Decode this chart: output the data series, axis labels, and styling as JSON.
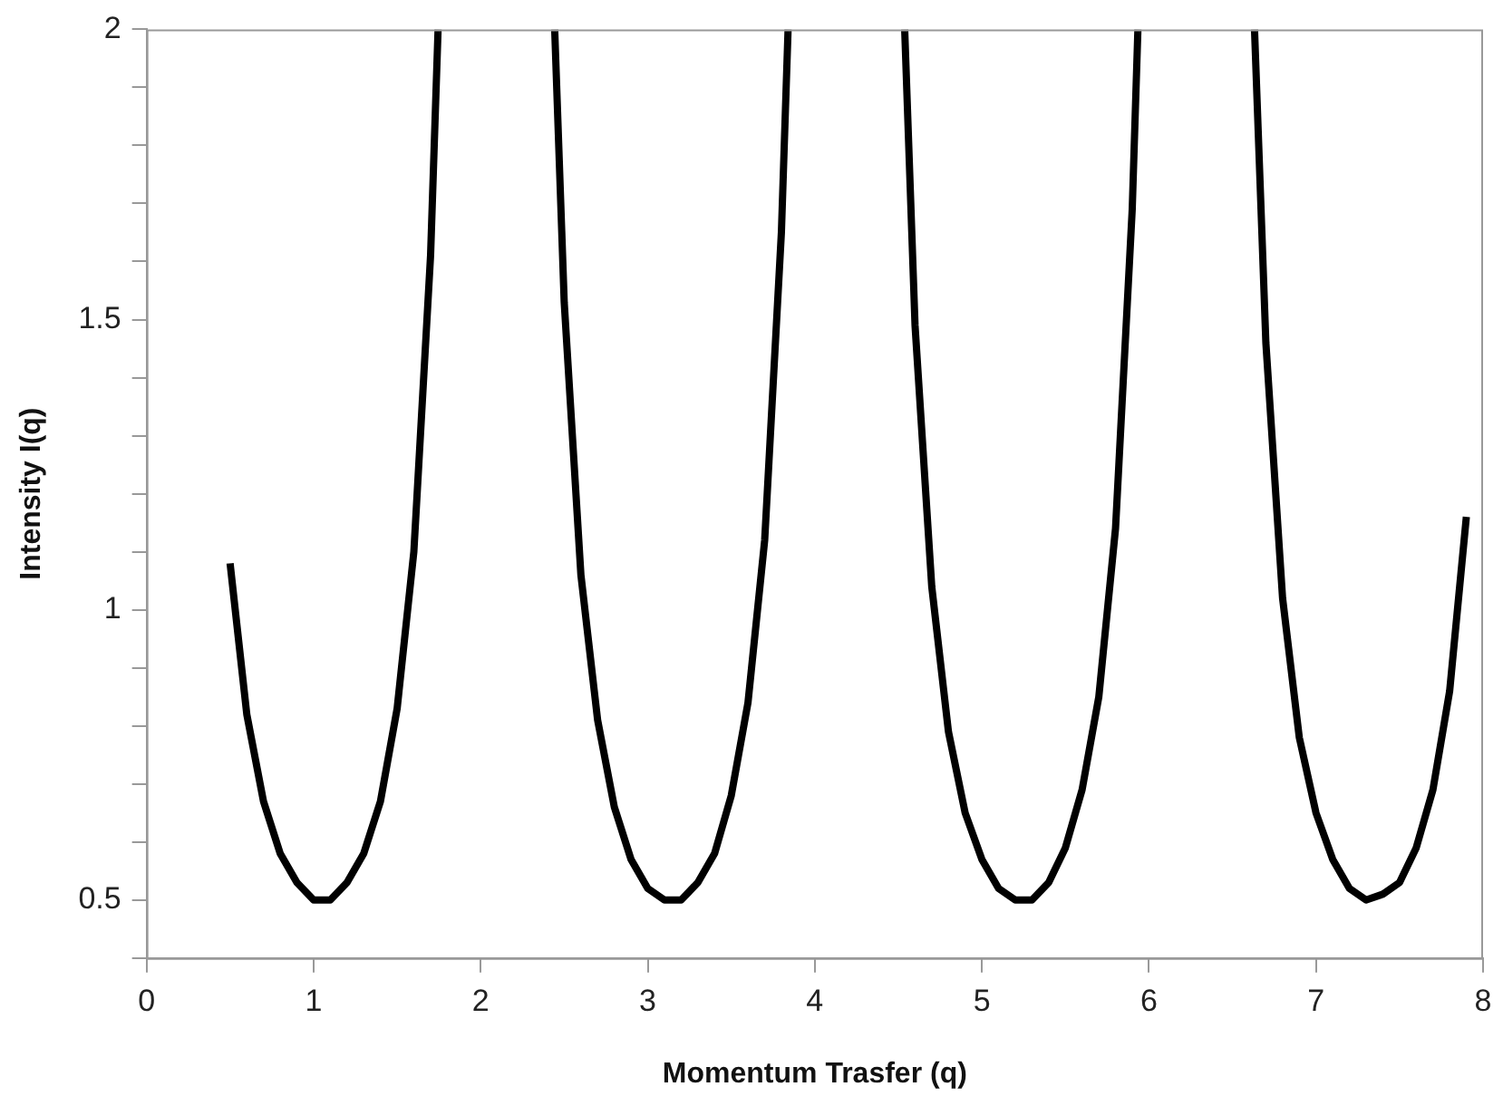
{
  "chart_data": {
    "type": "line",
    "xlabel": "Momentum Trasfer (q)",
    "ylabel": "Intensity I(q)",
    "x": [
      0.5,
      0.6,
      0.7,
      0.8,
      0.9,
      1.0,
      1.1,
      1.2,
      1.3,
      1.4,
      1.5,
      1.6,
      1.7,
      1.745,
      2.1,
      2.443,
      2.5,
      2.6,
      2.7,
      2.8,
      2.9,
      3.0,
      3.1,
      3.2,
      3.3,
      3.4,
      3.5,
      3.6,
      3.7,
      3.8,
      3.84,
      4.2,
      4.538,
      4.6,
      4.7,
      4.8,
      4.9,
      5.0,
      5.1,
      5.2,
      5.3,
      5.4,
      5.5,
      5.6,
      5.7,
      5.8,
      5.9,
      5.934,
      6.3,
      6.632,
      6.7,
      6.8,
      6.9,
      7.0,
      7.1,
      7.2,
      7.3,
      7.4,
      7.5,
      7.6,
      7.7,
      7.8,
      7.9
    ],
    "series": [
      {
        "color": "#000000",
        "values": [
          1.08,
          0.82,
          0.67,
          0.58,
          0.53,
          0.5,
          0.5,
          0.53,
          0.58,
          0.67,
          0.83,
          1.1,
          1.61,
          2,
          null,
          2,
          1.53,
          1.06,
          0.81,
          0.66,
          0.57,
          0.52,
          0.5,
          0.5,
          0.53,
          0.58,
          0.68,
          0.84,
          1.12,
          1.65,
          2,
          null,
          2,
          1.49,
          1.04,
          0.79,
          0.65,
          0.57,
          0.52,
          0.5,
          0.5,
          0.53,
          0.59,
          0.69,
          0.85,
          1.14,
          1.69,
          2,
          null,
          2,
          1.46,
          1.02,
          0.78,
          0.65,
          0.57,
          0.52,
          0.5,
          0.51,
          0.53,
          0.59,
          0.69,
          0.86,
          1.16
        ]
      }
    ],
    "xlim": [
      0,
      8
    ],
    "xticks": [
      0,
      1,
      2,
      3,
      4,
      5,
      6,
      7,
      8
    ],
    "ylim": [
      0.4,
      2
    ],
    "yticks": [
      {
        "value": 0.4,
        "label": null
      },
      0.5,
      {
        "value": 0.6,
        "label": null
      },
      {
        "value": 0.7,
        "label": null
      },
      {
        "value": 0.8,
        "label": null
      },
      {
        "value": 0.9,
        "label": null
      },
      1,
      {
        "value": 1.1,
        "label": null
      },
      {
        "value": 1.2,
        "label": null
      },
      {
        "value": 1.3,
        "label": null
      },
      {
        "value": 1.4,
        "label": null
      },
      1.5,
      {
        "value": 1.6,
        "label": null
      },
      {
        "value": 1.7,
        "label": null
      },
      {
        "value": 1.8,
        "label": null
      },
      {
        "value": 1.9,
        "label": null
      },
      2
    ],
    "grid": false,
    "legend": false,
    "marker": "none",
    "line_style": "solid"
  }
}
